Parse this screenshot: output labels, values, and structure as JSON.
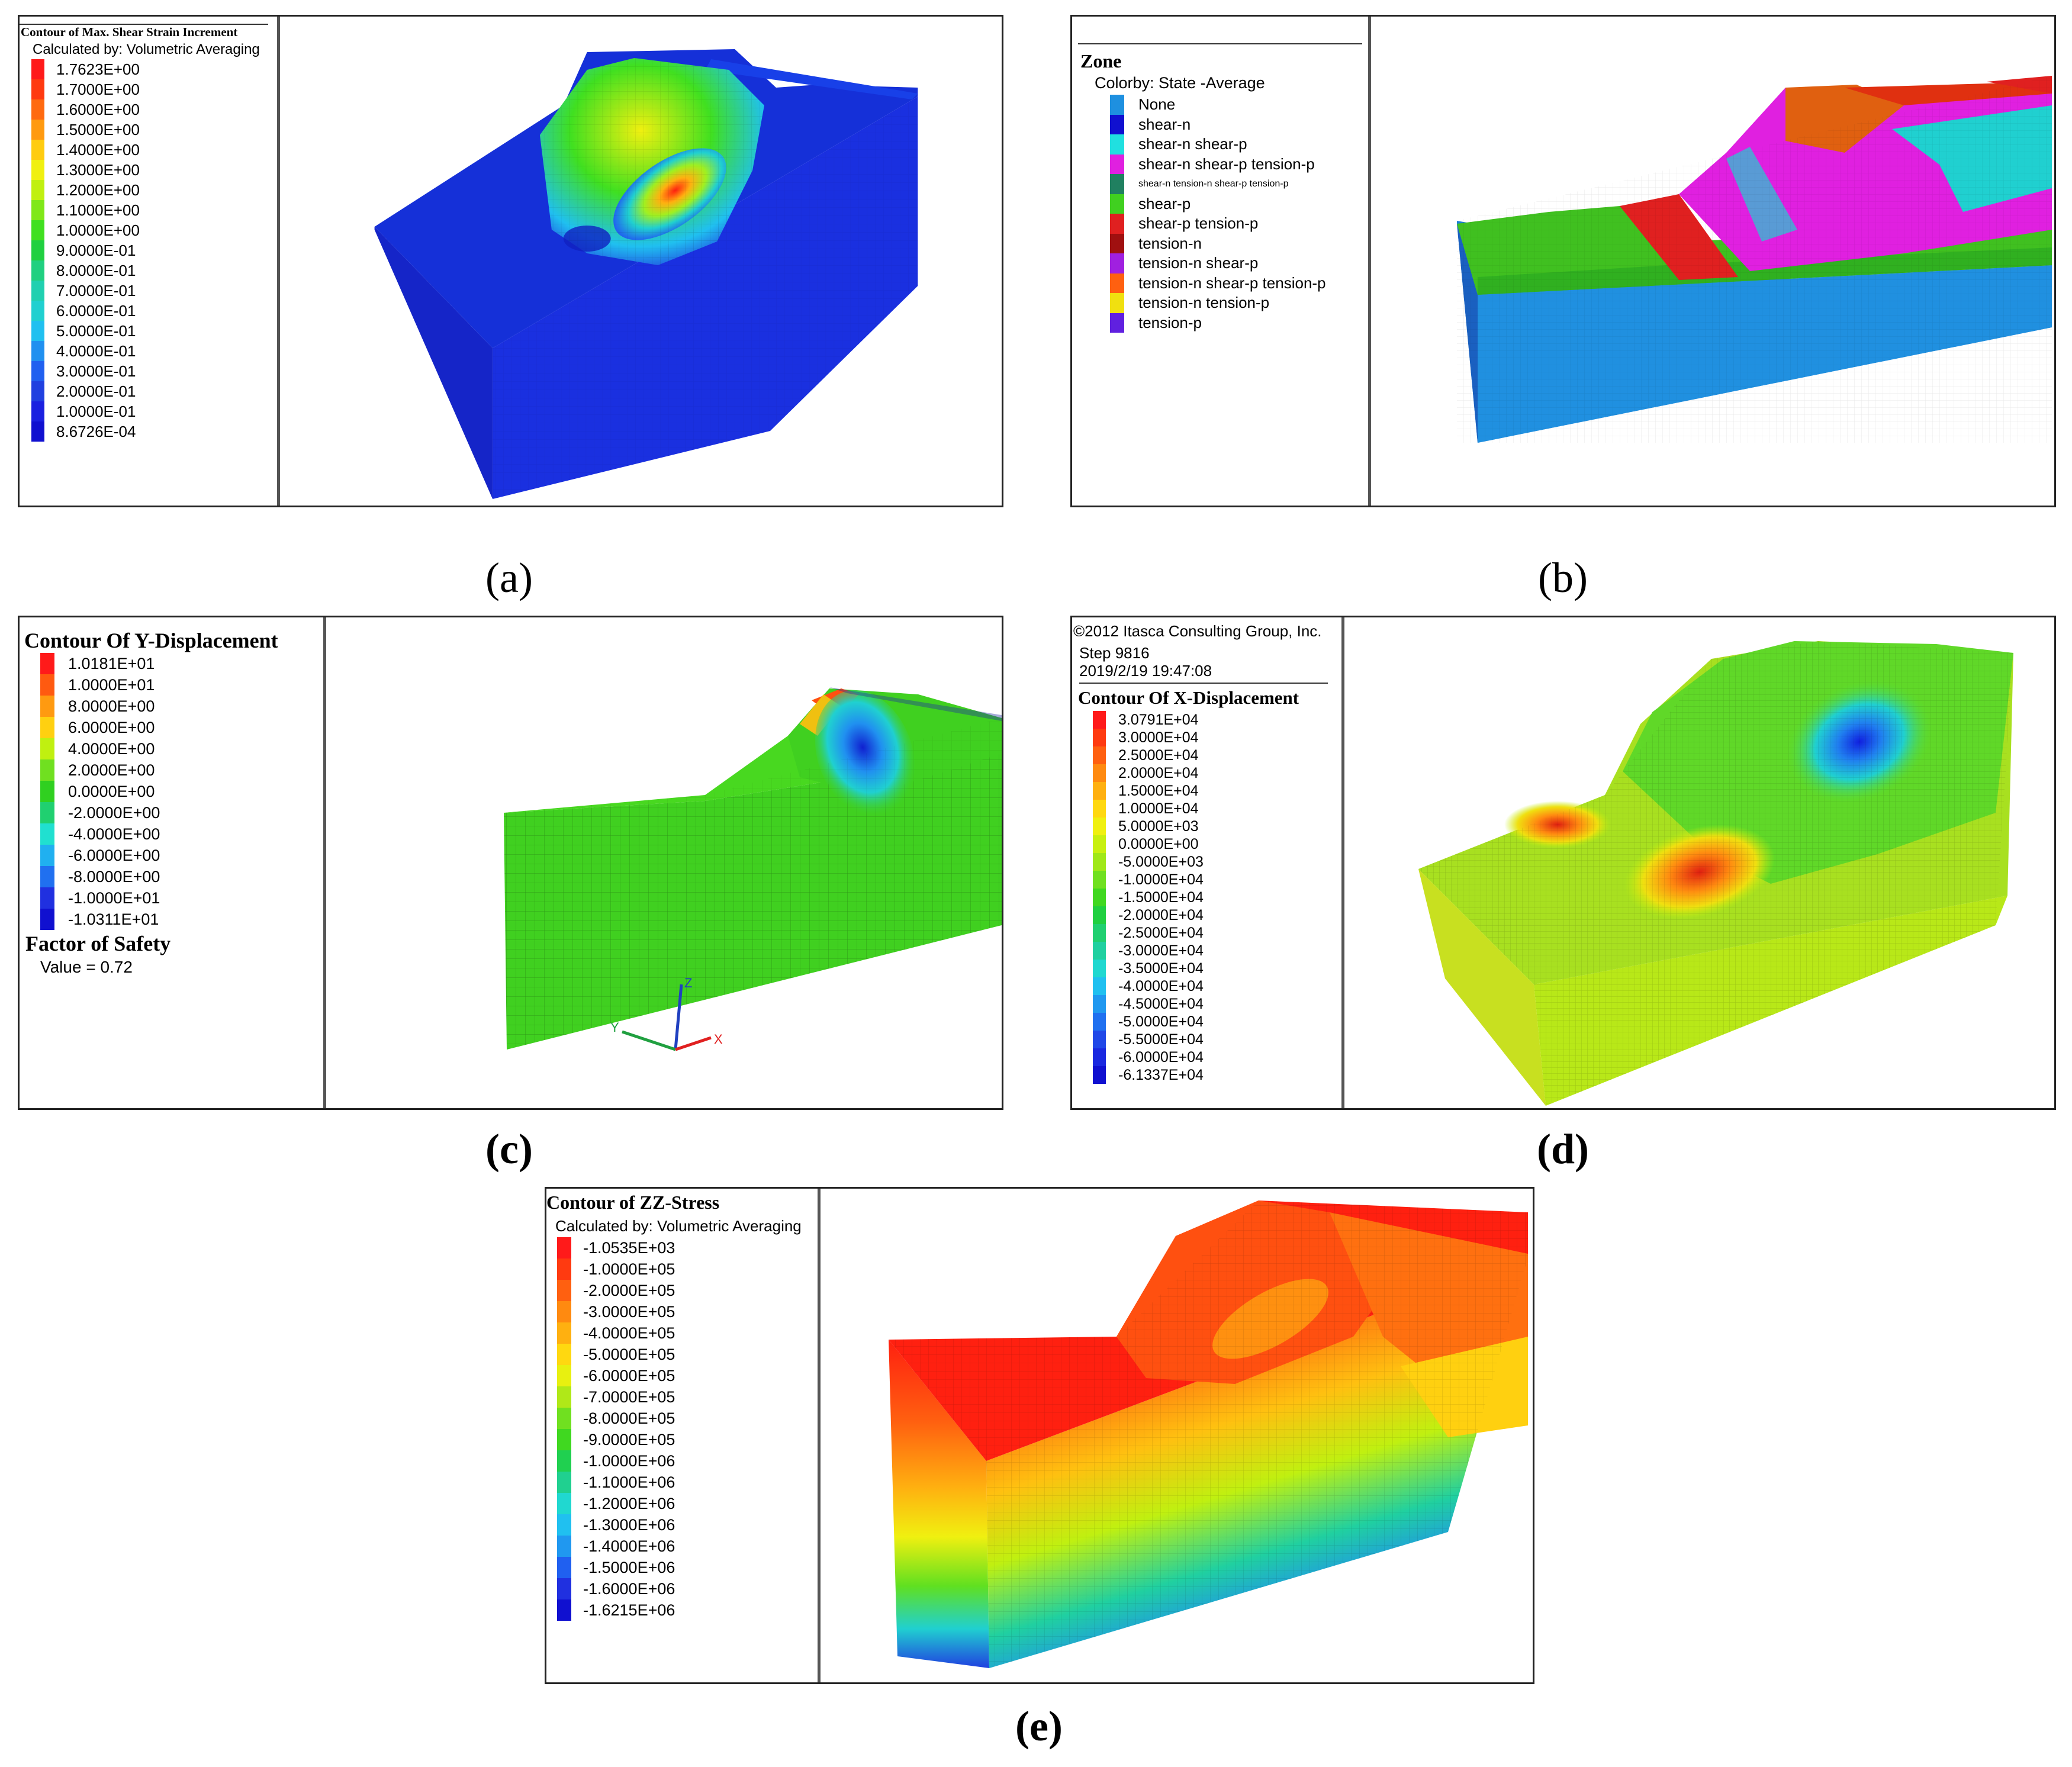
{
  "panel_a": {
    "caption": "(a)",
    "title": "Contour of Max. Shear Strain Increment",
    "subtitle": "Calculated by: Volumetric Averaging",
    "legend": [
      {
        "label": "1.7623E+00",
        "color": "#ff1a1a"
      },
      {
        "label": "1.7000E+00",
        "color": "#ff3a10"
      },
      {
        "label": "1.6000E+00",
        "color": "#ff6a10"
      },
      {
        "label": "1.5000E+00",
        "color": "#ff9a10"
      },
      {
        "label": "1.4000E+00",
        "color": "#ffcc10"
      },
      {
        "label": "1.3000E+00",
        "color": "#f0f010"
      },
      {
        "label": "1.2000E+00",
        "color": "#c0f010"
      },
      {
        "label": "1.1000E+00",
        "color": "#80e818"
      },
      {
        "label": "1.0000E+00",
        "color": "#40e020"
      },
      {
        "label": "9.0000E-01",
        "color": "#20d040"
      },
      {
        "label": "8.0000E-01",
        "color": "#20d080"
      },
      {
        "label": "7.0000E-01",
        "color": "#20d0b0"
      },
      {
        "label": "6.0000E-01",
        "color": "#20d0d0"
      },
      {
        "label": "5.0000E-01",
        "color": "#20c0f0"
      },
      {
        "label": "4.0000E-01",
        "color": "#2090f0"
      },
      {
        "label": "3.0000E-01",
        "color": "#2060f0"
      },
      {
        "label": "2.0000E-01",
        "color": "#2040e0"
      },
      {
        "label": "1.0000E-01",
        "color": "#1a20e0"
      },
      {
        "label": "8.6726E-04",
        "color": "#1010d0"
      }
    ]
  },
  "panel_b": {
    "caption": "(b)",
    "title": "Zone",
    "subtitle": "Colorby: State  -Average",
    "legend": [
      {
        "label": "None",
        "color": "#1e90e0"
      },
      {
        "label": "shear-n",
        "color": "#1010d0"
      },
      {
        "label": "shear-n shear-p",
        "color": "#20e0e0"
      },
      {
        "label": "shear-n shear-p tension-p",
        "color": "#e020e0"
      },
      {
        "label": "shear-n tension-n shear-p tension-p",
        "color": "#208060",
        "small": true
      },
      {
        "label": "shear-p",
        "color": "#40d020"
      },
      {
        "label": "shear-p tension-p",
        "color": "#e02020"
      },
      {
        "label": "tension-n",
        "color": "#a01010"
      },
      {
        "label": "tension-n shear-p",
        "color": "#a020e0"
      },
      {
        "label": "tension-n shear-p tension-p",
        "color": "#ff6010"
      },
      {
        "label": "tension-n tension-p",
        "color": "#f0e010"
      },
      {
        "label": "tension-p",
        "color": "#6020e0"
      }
    ]
  },
  "panel_c": {
    "caption": "(c)",
    "title": "Contour Of Y-Displacement",
    "legend": [
      {
        "label": "1.0181E+01",
        "color": "#ff1a1a"
      },
      {
        "label": "1.0000E+01",
        "color": "#ff5a10"
      },
      {
        "label": "8.0000E+00",
        "color": "#ff9a10"
      },
      {
        "label": "6.0000E+00",
        "color": "#ffd010"
      },
      {
        "label": "4.0000E+00",
        "color": "#c0f010"
      },
      {
        "label": "2.0000E+00",
        "color": "#70e020"
      },
      {
        "label": "0.0000E+00",
        "color": "#30d020"
      },
      {
        "label": "-2.0000E+00",
        "color": "#20d070"
      },
      {
        "label": "-4.0000E+00",
        "color": "#20e0d0"
      },
      {
        "label": "-6.0000E+00",
        "color": "#20b0f0"
      },
      {
        "label": "-8.0000E+00",
        "color": "#2070f0"
      },
      {
        "label": "-1.0000E+01",
        "color": "#2030e0"
      },
      {
        "label": "-1.0311E+01",
        "color": "#1010d0"
      }
    ],
    "fos_heading": "Factor of Safety",
    "fos_value": "Value = 0.72",
    "axis_labels": {
      "x": "X",
      "y": "Y",
      "z": "Z"
    }
  },
  "panel_d": {
    "caption": "(d)",
    "header": [
      "©2012 Itasca Consulting Group, Inc.",
      "Step 9816",
      "2019/2/19 19:47:08"
    ],
    "title": "Contour Of X-Displacement",
    "legend": [
      {
        "label": "3.0791E+04",
        "color": "#ff1a1a"
      },
      {
        "label": "3.0000E+04",
        "color": "#ff3a10"
      },
      {
        "label": "2.5000E+04",
        "color": "#ff6010"
      },
      {
        "label": "2.0000E+04",
        "color": "#ff8a10"
      },
      {
        "label": "1.5000E+04",
        "color": "#ffb010"
      },
      {
        "label": "1.0000E+04",
        "color": "#ffd810"
      },
      {
        "label": "5.0000E+03",
        "color": "#f0f010"
      },
      {
        "label": "0.0000E+00",
        "color": "#c8f010"
      },
      {
        "label": "-5.0000E+03",
        "color": "#a0e818"
      },
      {
        "label": "-1.0000E+04",
        "color": "#70e020"
      },
      {
        "label": "-1.5000E+04",
        "color": "#40d820"
      },
      {
        "label": "-2.0000E+04",
        "color": "#20d040"
      },
      {
        "label": "-2.5000E+04",
        "color": "#20d070"
      },
      {
        "label": "-3.0000E+04",
        "color": "#20d0a0"
      },
      {
        "label": "-3.5000E+04",
        "color": "#20d8d0"
      },
      {
        "label": "-4.0000E+04",
        "color": "#20c0f0"
      },
      {
        "label": "-4.5000E+04",
        "color": "#2098f0"
      },
      {
        "label": "-5.0000E+04",
        "color": "#2070f0"
      },
      {
        "label": "-5.5000E+04",
        "color": "#2048e8"
      },
      {
        "label": "-6.0000E+04",
        "color": "#1a28e0"
      },
      {
        "label": "-6.1337E+04",
        "color": "#1010d0"
      }
    ]
  },
  "panel_e": {
    "caption": "(e)",
    "title": "Contour of ZZ-Stress",
    "subtitle": "Calculated by: Volumetric Averaging",
    "legend": [
      {
        "label": "-1.0535E+03",
        "color": "#ff1a1a"
      },
      {
        "label": "-1.0000E+05",
        "color": "#ff3a10"
      },
      {
        "label": "-2.0000E+05",
        "color": "#ff6010"
      },
      {
        "label": "-3.0000E+05",
        "color": "#ff8a10"
      },
      {
        "label": "-4.0000E+05",
        "color": "#ffb010"
      },
      {
        "label": "-5.0000E+05",
        "color": "#ffd810"
      },
      {
        "label": "-6.0000E+05",
        "color": "#e8f010"
      },
      {
        "label": "-7.0000E+05",
        "color": "#b0e818"
      },
      {
        "label": "-8.0000E+05",
        "color": "#70e020"
      },
      {
        "label": "-9.0000E+05",
        "color": "#40d820"
      },
      {
        "label": "-1.0000E+06",
        "color": "#20d050"
      },
      {
        "label": "-1.1000E+06",
        "color": "#20d090"
      },
      {
        "label": "-1.2000E+06",
        "color": "#20d8d0"
      },
      {
        "label": "-1.3000E+06",
        "color": "#20c0f0"
      },
      {
        "label": "-1.4000E+06",
        "color": "#2098f0"
      },
      {
        "label": "-1.5000E+06",
        "color": "#2060f0"
      },
      {
        "label": "-1.6000E+06",
        "color": "#2030e0"
      },
      {
        "label": "-1.6215E+06",
        "color": "#1010d0"
      }
    ]
  }
}
